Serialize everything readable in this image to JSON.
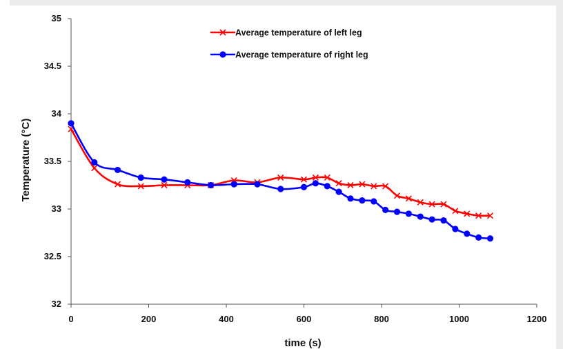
{
  "chart_data": {
    "type": "line",
    "title": "",
    "xlabel": "time (s)",
    "ylabel": "Temperature (°C)",
    "xlim": [
      0,
      1200
    ],
    "ylim": [
      32,
      35
    ],
    "xticks": [
      0,
      200,
      400,
      600,
      800,
      1000,
      1200
    ],
    "yticks": [
      32,
      32.5,
      33,
      33.5,
      34,
      34.5,
      35
    ],
    "xtick_labels": [
      "0",
      "200",
      "400",
      "600",
      "800",
      "1000",
      "1200"
    ],
    "ytick_labels": [
      "32",
      "32.5",
      "33",
      "33.5",
      "34",
      "34.5",
      "35"
    ],
    "grid": false,
    "legend_position": "top-center",
    "series": [
      {
        "name": "Average temperature of left leg",
        "color": "#ff0000",
        "marker": "x",
        "x": [
          0,
          60,
          120,
          180,
          240,
          300,
          360,
          420,
          480,
          540,
          600,
          630,
          660,
          690,
          720,
          750,
          780,
          810,
          840,
          870,
          900,
          930,
          960,
          990,
          1020,
          1050,
          1080
        ],
        "y": [
          33.84,
          33.43,
          33.26,
          33.24,
          33.25,
          33.25,
          33.25,
          33.3,
          33.28,
          33.33,
          33.31,
          33.33,
          33.33,
          33.27,
          33.25,
          33.26,
          33.24,
          33.24,
          33.14,
          33.11,
          33.07,
          33.05,
          33.05,
          32.98,
          32.95,
          32.93,
          32.93
        ]
      },
      {
        "name": "Average temperature of right leg",
        "color": "#0000ff",
        "marker": "circle",
        "x": [
          0,
          60,
          120,
          180,
          240,
          300,
          360,
          420,
          480,
          540,
          600,
          630,
          660,
          690,
          720,
          750,
          780,
          810,
          840,
          870,
          900,
          930,
          960,
          990,
          1020,
          1050,
          1080
        ],
        "y": [
          33.9,
          33.49,
          33.41,
          33.33,
          33.31,
          33.28,
          33.25,
          33.26,
          33.26,
          33.21,
          33.23,
          33.27,
          33.24,
          33.18,
          33.11,
          33.09,
          33.08,
          32.99,
          32.97,
          32.95,
          32.92,
          32.89,
          32.88,
          32.79,
          32.74,
          32.7,
          32.69
        ]
      }
    ]
  }
}
